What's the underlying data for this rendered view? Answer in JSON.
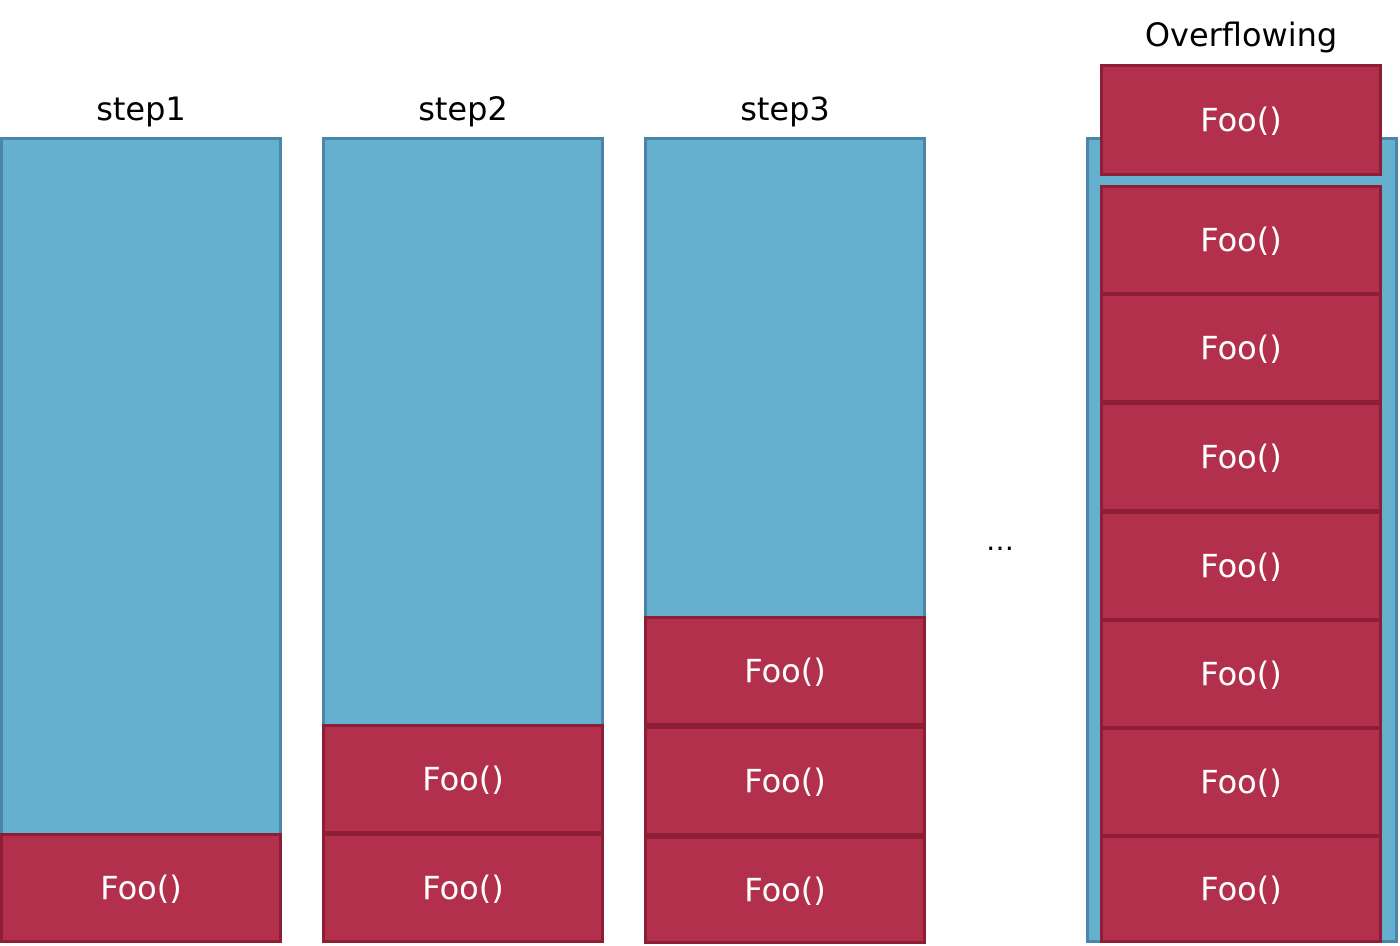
{
  "columns": [
    {
      "label": "step1",
      "frames": [
        "Foo()"
      ]
    },
    {
      "label": "step2",
      "frames": [
        "Foo()",
        "Foo()"
      ]
    },
    {
      "label": "step3",
      "frames": [
        "Foo()",
        "Foo()",
        "Foo()"
      ]
    },
    {
      "label": "Overflowing",
      "overflow_frame": "Foo()",
      "frames": [
        "Foo()",
        "Foo()",
        "Foo()",
        "Foo()",
        "Foo()",
        "Foo()",
        "Foo()"
      ]
    }
  ],
  "ellipsis": "…",
  "colors": {
    "stack": "#66b0cf",
    "frame": "#b2304b"
  }
}
